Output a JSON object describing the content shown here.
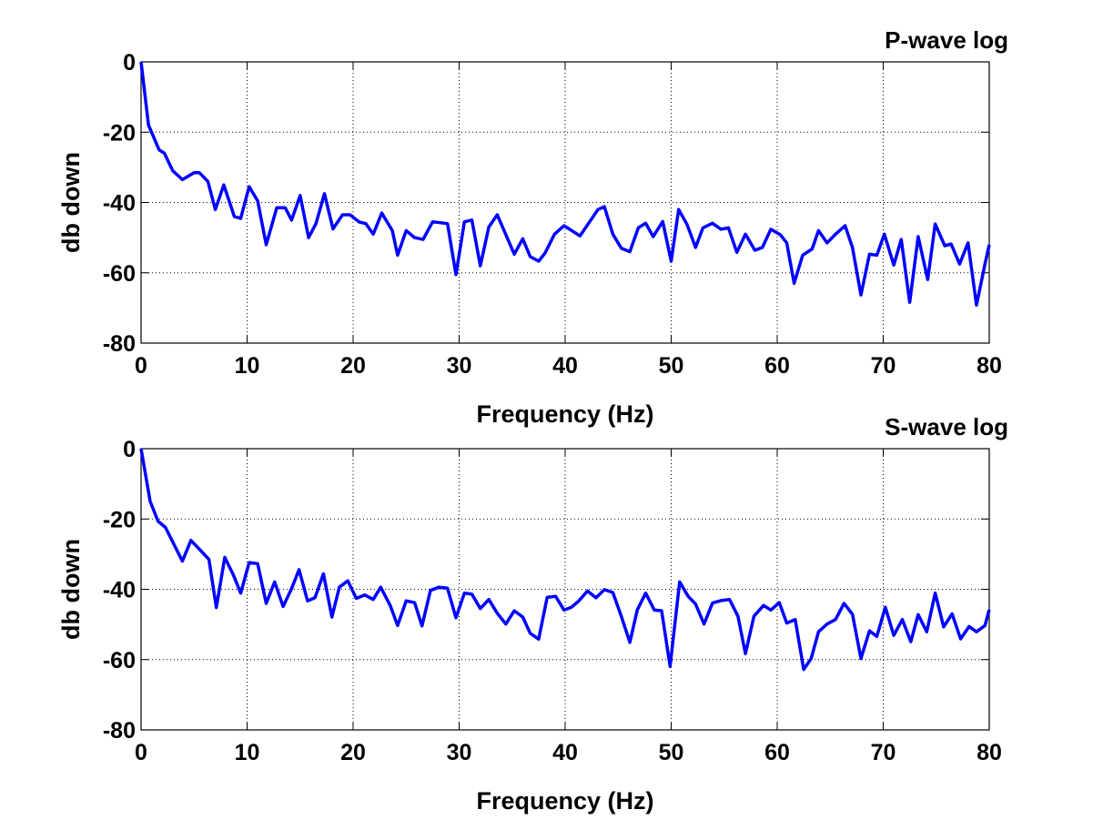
{
  "chart_data": [
    {
      "type": "line",
      "title": "P-wave log",
      "xlabel": "Frequency (Hz)",
      "ylabel": "db down",
      "xlim": [
        0,
        80
      ],
      "ylim": [
        -80,
        0
      ],
      "xticks": [
        "0",
        "10",
        "20",
        "30",
        "40",
        "50",
        "60",
        "70",
        "80"
      ],
      "yticks": [
        "0",
        "-20",
        "-40",
        "-60",
        "-80"
      ],
      "grid": true,
      "line_color": "#0000ff",
      "series": [
        {
          "name": "P-wave",
          "x": [
            0,
            0.7,
            1.7,
            2.2,
            3,
            3.9,
            5,
            5.5,
            6.3,
            7,
            7.8,
            8.8,
            9.4,
            10.2,
            11,
            11.8,
            12.8,
            13.6,
            14.2,
            15,
            15.8,
            16.5,
            17.3,
            18.1,
            19,
            19.7,
            20.6,
            21.2,
            21.9,
            22.7,
            23.7,
            24.2,
            25,
            25.8,
            26.6,
            27.5,
            28.9,
            29.7,
            30.5,
            31.2,
            32,
            32.8,
            33.6,
            35.2,
            36,
            36.7,
            37.5,
            38.1,
            39,
            39.9,
            41.4,
            43.1,
            43.7,
            44.5,
            45.3,
            46.1,
            46.9,
            47.6,
            48.3,
            49.2,
            50,
            50.7,
            51.5,
            52.3,
            53,
            53.9,
            54.7,
            55.4,
            56.2,
            57,
            57.9,
            58.6,
            59.4,
            60.3,
            60.9,
            61.6,
            62.4,
            63.3,
            63.9,
            64.7,
            65.5,
            66.4,
            67.1,
            67.9,
            68.7,
            69.4,
            70.1,
            71,
            71.7,
            72.5,
            73.3,
            74.2,
            74.9,
            75.8,
            76.4,
            77.2,
            78,
            78.8,
            79.6,
            80
          ],
          "y": [
            0,
            -18,
            -25,
            -26,
            -31,
            -33.5,
            -31.5,
            -31.5,
            -34,
            -42,
            -35,
            -44,
            -44.5,
            -35.5,
            -39.5,
            -52,
            -41.5,
            -41.5,
            -45,
            -38,
            -50,
            -46,
            -37.5,
            -47.5,
            -43.5,
            -43.5,
            -45.6,
            -46,
            -49,
            -43,
            -48,
            -55,
            -48,
            -50,
            -50.5,
            -45.5,
            -46,
            -60.5,
            -45.5,
            -45,
            -58,
            -47,
            -43.5,
            -54.7,
            -50.3,
            -55.4,
            -56.7,
            -54.4,
            -49,
            -46.6,
            -49.5,
            -42,
            -41.2,
            -49,
            -53,
            -54,
            -47.2,
            -45.9,
            -49.7,
            -45.4,
            -56.7,
            -42,
            -46.3,
            -52.8,
            -47.2,
            -45.9,
            -47.6,
            -47.2,
            -54.2,
            -49,
            -53.6,
            -52.8,
            -47.6,
            -49.2,
            -51.5,
            -63,
            -55,
            -53.2,
            -48,
            -51.5,
            -49,
            -46.6,
            -52.8,
            -66.3,
            -54.7,
            -55,
            -49,
            -57.8,
            -50.5,
            -68.4,
            -49.7,
            -61.9,
            -46.1,
            -52.3,
            -51.8,
            -57.5,
            -51.5,
            -69.2,
            -57.5,
            -52
          ]
        }
      ]
    },
    {
      "type": "line",
      "title": "S-wave log",
      "xlabel": "Frequency (Hz)",
      "ylabel": "db down",
      "xlim": [
        0,
        80
      ],
      "ylim": [
        -80,
        0
      ],
      "xticks": [
        "0",
        "10",
        "20",
        "30",
        "40",
        "50",
        "60",
        "70",
        "80"
      ],
      "yticks": [
        "0",
        "-20",
        "-40",
        "-60",
        "-80"
      ],
      "grid": true,
      "line_color": "#0000ff",
      "series": [
        {
          "name": "S-wave",
          "x": [
            0,
            0.86,
            1.6,
            2.3,
            3.9,
            4.7,
            5.6,
            6.4,
            7.1,
            7.9,
            8.7,
            9.4,
            10.2,
            11,
            11.8,
            12.6,
            13.4,
            14.2,
            14.9,
            15.7,
            16.4,
            17.2,
            18,
            18.7,
            19.5,
            20.3,
            21.1,
            21.9,
            22.6,
            23.5,
            24.2,
            25,
            25.8,
            26.5,
            27.3,
            28.1,
            28.9,
            29.7,
            30.5,
            31.2,
            32,
            32.8,
            33.6,
            34.4,
            35.2,
            36,
            36.7,
            37.5,
            38.3,
            39.1,
            39.9,
            40.6,
            41.3,
            42.1,
            42.9,
            43.7,
            44.5,
            45.3,
            46.1,
            46.8,
            47.6,
            48.4,
            49.1,
            49.9,
            50.8,
            51.6,
            52.3,
            53.1,
            53.9,
            54.7,
            55.5,
            56.3,
            57,
            57.8,
            58.7,
            59.4,
            60.2,
            60.9,
            61.7,
            62.5,
            63.2,
            63.9,
            64.7,
            65.5,
            66.3,
            67.1,
            67.9,
            68.7,
            69.4,
            70.2,
            71,
            71.8,
            72.6,
            73.3,
            74.1,
            74.9,
            75.7,
            76.5,
            77.3,
            78.1,
            78.8,
            79.6,
            80
          ],
          "y": [
            0,
            -15,
            -20.6,
            -22.4,
            -32,
            -26.1,
            -28.9,
            -31.5,
            -45.2,
            -30.9,
            -35.9,
            -41.1,
            -32.4,
            -32.7,
            -44,
            -37.9,
            -44.9,
            -39.8,
            -34.4,
            -43.3,
            -42.4,
            -35.6,
            -47.9,
            -39.4,
            -37.6,
            -42.6,
            -41.6,
            -42.9,
            -39.4,
            -44.6,
            -50.3,
            -43.3,
            -43.8,
            -50.4,
            -40.3,
            -39.4,
            -39.7,
            -48.1,
            -41.1,
            -41.4,
            -45.5,
            -42.9,
            -46.8,
            -49.9,
            -46.1,
            -47.9,
            -52.5,
            -54.2,
            -42.3,
            -42,
            -45.9,
            -45.1,
            -43.3,
            -40.5,
            -42.4,
            -40.1,
            -40.9,
            -47.7,
            -55.1,
            -45.9,
            -41.1,
            -45.9,
            -46.1,
            -61.9,
            -37.9,
            -42,
            -44.2,
            -49.9,
            -43.9,
            -43.2,
            -42.9,
            -47.7,
            -58.3,
            -47.7,
            -44.6,
            -45.9,
            -43.8,
            -49.6,
            -48.6,
            -62.8,
            -59.7,
            -52.1,
            -49.9,
            -48.6,
            -44,
            -47.1,
            -59.7,
            -51.8,
            -53.4,
            -45.1,
            -53.1,
            -48.6,
            -54.9,
            -47.2,
            -52.1,
            -41.1,
            -50.7,
            -47,
            -54.1,
            -50.6,
            -52.1,
            -50.3,
            -45.8
          ]
        }
      ]
    }
  ]
}
